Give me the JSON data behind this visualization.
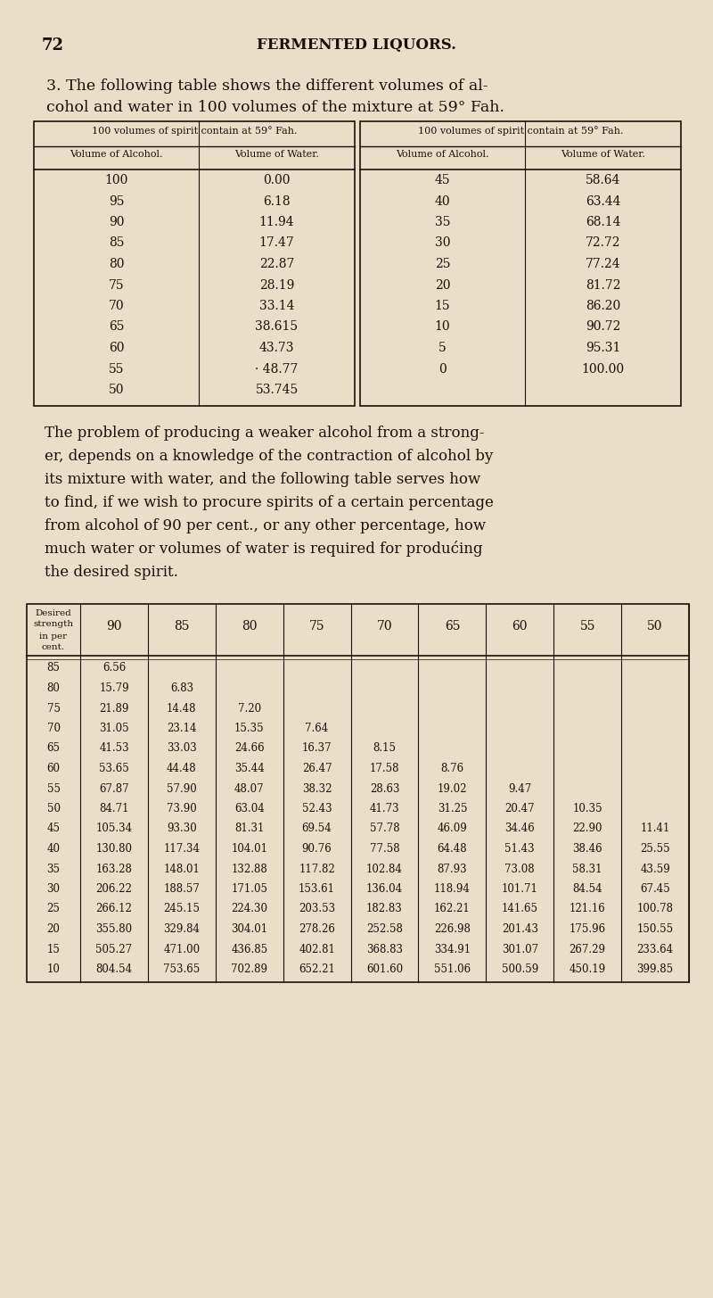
{
  "bg_color": "#e8dfc8",
  "text_color": "#1a1008",
  "page_number": "72",
  "page_header": "FERMENTED LIQUORS.",
  "section_line1": "3. The following table shows the different volumes of al-",
  "section_line2": "cohol and water in 100 volumes of the mixture at 59° Fah.",
  "table1_header_left": "100 volumes of spirit contain at 59° Fah.",
  "table1_header_right": "100 volumes of spirit contain at 59° Fah.",
  "table1_col_headers": [
    "Volume of Alcohol.",
    "Volume of Water.",
    "Volume of Alcohol.",
    "Volume of Water."
  ],
  "table1_data_left": [
    [
      "100",
      "0.00"
    ],
    [
      "95",
      "6.18"
    ],
    [
      "90",
      "11.94"
    ],
    [
      "85",
      "17.47"
    ],
    [
      "80",
      "22.87"
    ],
    [
      "75",
      "28.19"
    ],
    [
      "70",
      "33.14"
    ],
    [
      "65",
      "38.615"
    ],
    [
      "60",
      "43.73"
    ],
    [
      "55",
      "· 48.77"
    ],
    [
      "50",
      "53.745"
    ]
  ],
  "table1_data_right": [
    [
      "45",
      "58.64"
    ],
    [
      "40",
      "63.44"
    ],
    [
      "35",
      "68.14"
    ],
    [
      "30",
      "72.72"
    ],
    [
      "25",
      "77.24"
    ],
    [
      "20",
      "81.72"
    ],
    [
      "15",
      "86.20"
    ],
    [
      "10",
      "90.72"
    ],
    [
      "5",
      "95.31"
    ],
    [
      "0",
      "100.00"
    ],
    [
      "",
      ""
    ]
  ],
  "para_lines": [
    "The problem of producing a weaker alcohol from a strong-",
    "er, depends on a knowledge of the contraction of alcohol by",
    "its mixture with water, and the following table serves how",
    "to find, if we wish to procure spirits of a certain percentage",
    "from alcohol of 90 per cent., or any other percentage, how",
    "much water or volumes of water is required for produćing",
    "the desired spirit."
  ],
  "table2_col_headers": [
    "Desired\nstrength\nin per\ncent.",
    "90",
    "85",
    "80",
    "75",
    "70",
    "65",
    "60",
    "55",
    "50"
  ],
  "table2_data": [
    [
      "85",
      "6.56",
      "",
      "",
      "",
      "",
      "",
      "",
      "",
      ""
    ],
    [
      "80",
      "15.79",
      "6.83",
      "",
      "",
      "",
      "",
      "",
      "",
      ""
    ],
    [
      "75",
      "21.89",
      "14.48",
      "7.20",
      "",
      "",
      "",
      "",
      "",
      ""
    ],
    [
      "70",
      "31.05",
      "23.14",
      "15.35",
      "7.64",
      "",
      "",
      "",
      "",
      ""
    ],
    [
      "65",
      "41.53",
      "33.03",
      "24.66",
      "16.37",
      "8.15",
      "",
      "",
      "",
      ""
    ],
    [
      "60",
      "53.65",
      "44.48",
      "35.44",
      "26.47",
      "17.58",
      "8.76",
      "",
      "",
      ""
    ],
    [
      "55",
      "67.87",
      "57.90",
      "48.07",
      "38.32",
      "28.63",
      "19.02",
      "9.47",
      "",
      ""
    ],
    [
      "50",
      "84.71",
      "73.90",
      "63.04",
      "52.43",
      "41.73",
      "31.25",
      "20.47",
      "10.35",
      ""
    ],
    [
      "45",
      "105.34",
      "93.30",
      "81.31",
      "69.54",
      "57.78",
      "46.09",
      "34.46",
      "22.90",
      "11.41"
    ],
    [
      "40",
      "130.80",
      "117.34",
      "104.01",
      "90.76",
      "77.58",
      "64.48",
      "51.43",
      "38.46",
      "25.55"
    ],
    [
      "35",
      "163.28",
      "148.01",
      "132.88",
      "117.82",
      "102.84",
      "87.93",
      "73.08",
      "58.31",
      "43.59"
    ],
    [
      "30",
      "206.22",
      "188.57",
      "171.05",
      "153.61",
      "136.04",
      "118.94",
      "101.71",
      "84.54",
      "67.45"
    ],
    [
      "25",
      "266.12",
      "245.15",
      "224.30",
      "203.53",
      "182.83",
      "162.21",
      "141.65",
      "121.16",
      "100.78"
    ],
    [
      "20",
      "355.80",
      "329.84",
      "304.01",
      "278.26",
      "252.58",
      "226.98",
      "201.43",
      "175.96",
      "150.55"
    ],
    [
      "15",
      "505.27",
      "471.00",
      "436.85",
      "402.81",
      "368.83",
      "334.91",
      "301.07",
      "267.29",
      "233.64"
    ],
    [
      "10",
      "804.54",
      "753.65",
      "702.89",
      "652.21",
      "601.60",
      "551.06",
      "500.59",
      "450.19",
      "399.85"
    ]
  ]
}
